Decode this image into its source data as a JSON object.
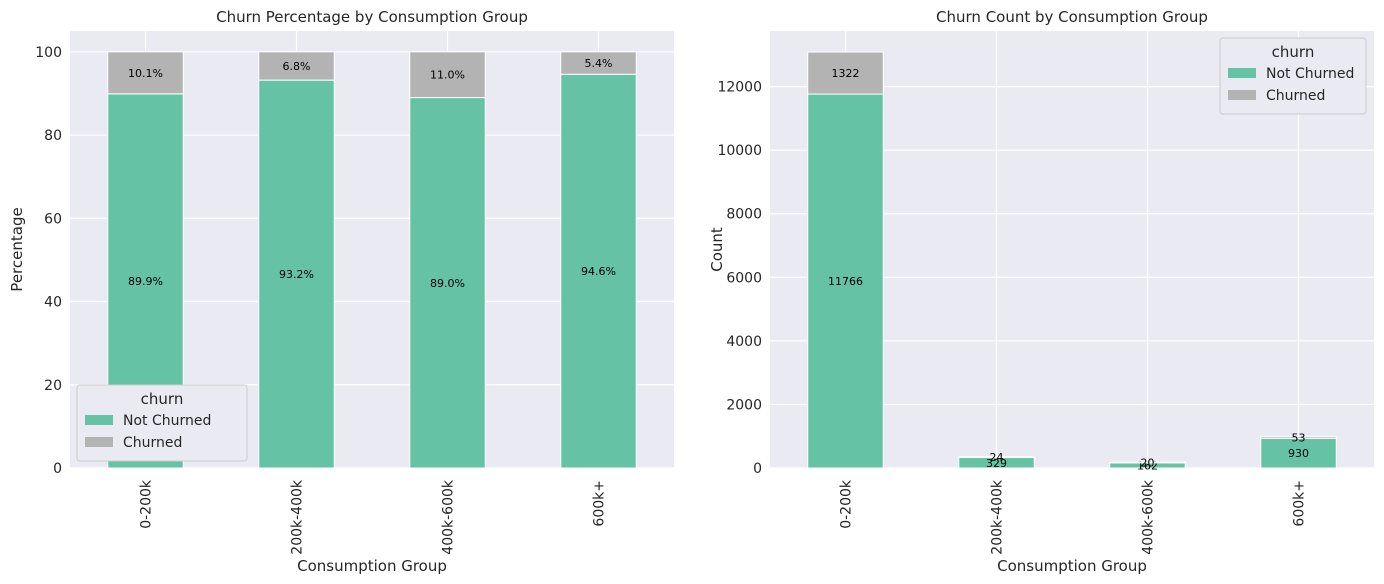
{
  "colors": {
    "not_churned": "#66c2a5",
    "churned": "#b3b3b3"
  },
  "chart_data": [
    {
      "type": "bar",
      "stacked": true,
      "title": "Churn Percentage by Consumption Group",
      "xlabel": "Consumption Group",
      "ylabel": "Percentage",
      "ylim": [
        0,
        105
      ],
      "yticks": [
        0,
        20,
        40,
        60,
        80,
        100
      ],
      "categories": [
        "0-200k",
        "200k-400k",
        "400k-600k",
        "600k+"
      ],
      "series": [
        {
          "name": "Not Churned",
          "values": [
            89.9,
            93.2,
            89.0,
            94.6
          ],
          "labels": [
            "89.9%",
            "93.2%",
            "89.0%",
            "94.6%"
          ]
        },
        {
          "name": "Churned",
          "values": [
            10.1,
            6.8,
            11.0,
            5.4
          ],
          "labels": [
            "10.1%",
            "6.8%",
            "11.0%",
            "5.4%"
          ]
        }
      ],
      "legend": {
        "title": "churn",
        "placement": "lower-left"
      },
      "grid": true
    },
    {
      "type": "bar",
      "stacked": true,
      "title": "Churn Count by Consumption Group",
      "xlabel": "Consumption Group",
      "ylabel": "Count",
      "ylim": [
        0,
        13750
      ],
      "yticks": [
        0,
        2000,
        4000,
        6000,
        8000,
        10000,
        12000
      ],
      "categories": [
        "0-200k",
        "200k-400k",
        "400k-600k",
        "600k+"
      ],
      "series": [
        {
          "name": "Not Churned",
          "values": [
            11766,
            329,
            162,
            930
          ],
          "labels": [
            "11766",
            "329",
            "162",
            "930"
          ]
        },
        {
          "name": "Churned",
          "values": [
            1322,
            24,
            20,
            53
          ],
          "labels": [
            "1322",
            "24",
            "20",
            "53"
          ]
        }
      ],
      "legend": {
        "title": "churn",
        "placement": "upper-right"
      },
      "grid": true
    }
  ]
}
